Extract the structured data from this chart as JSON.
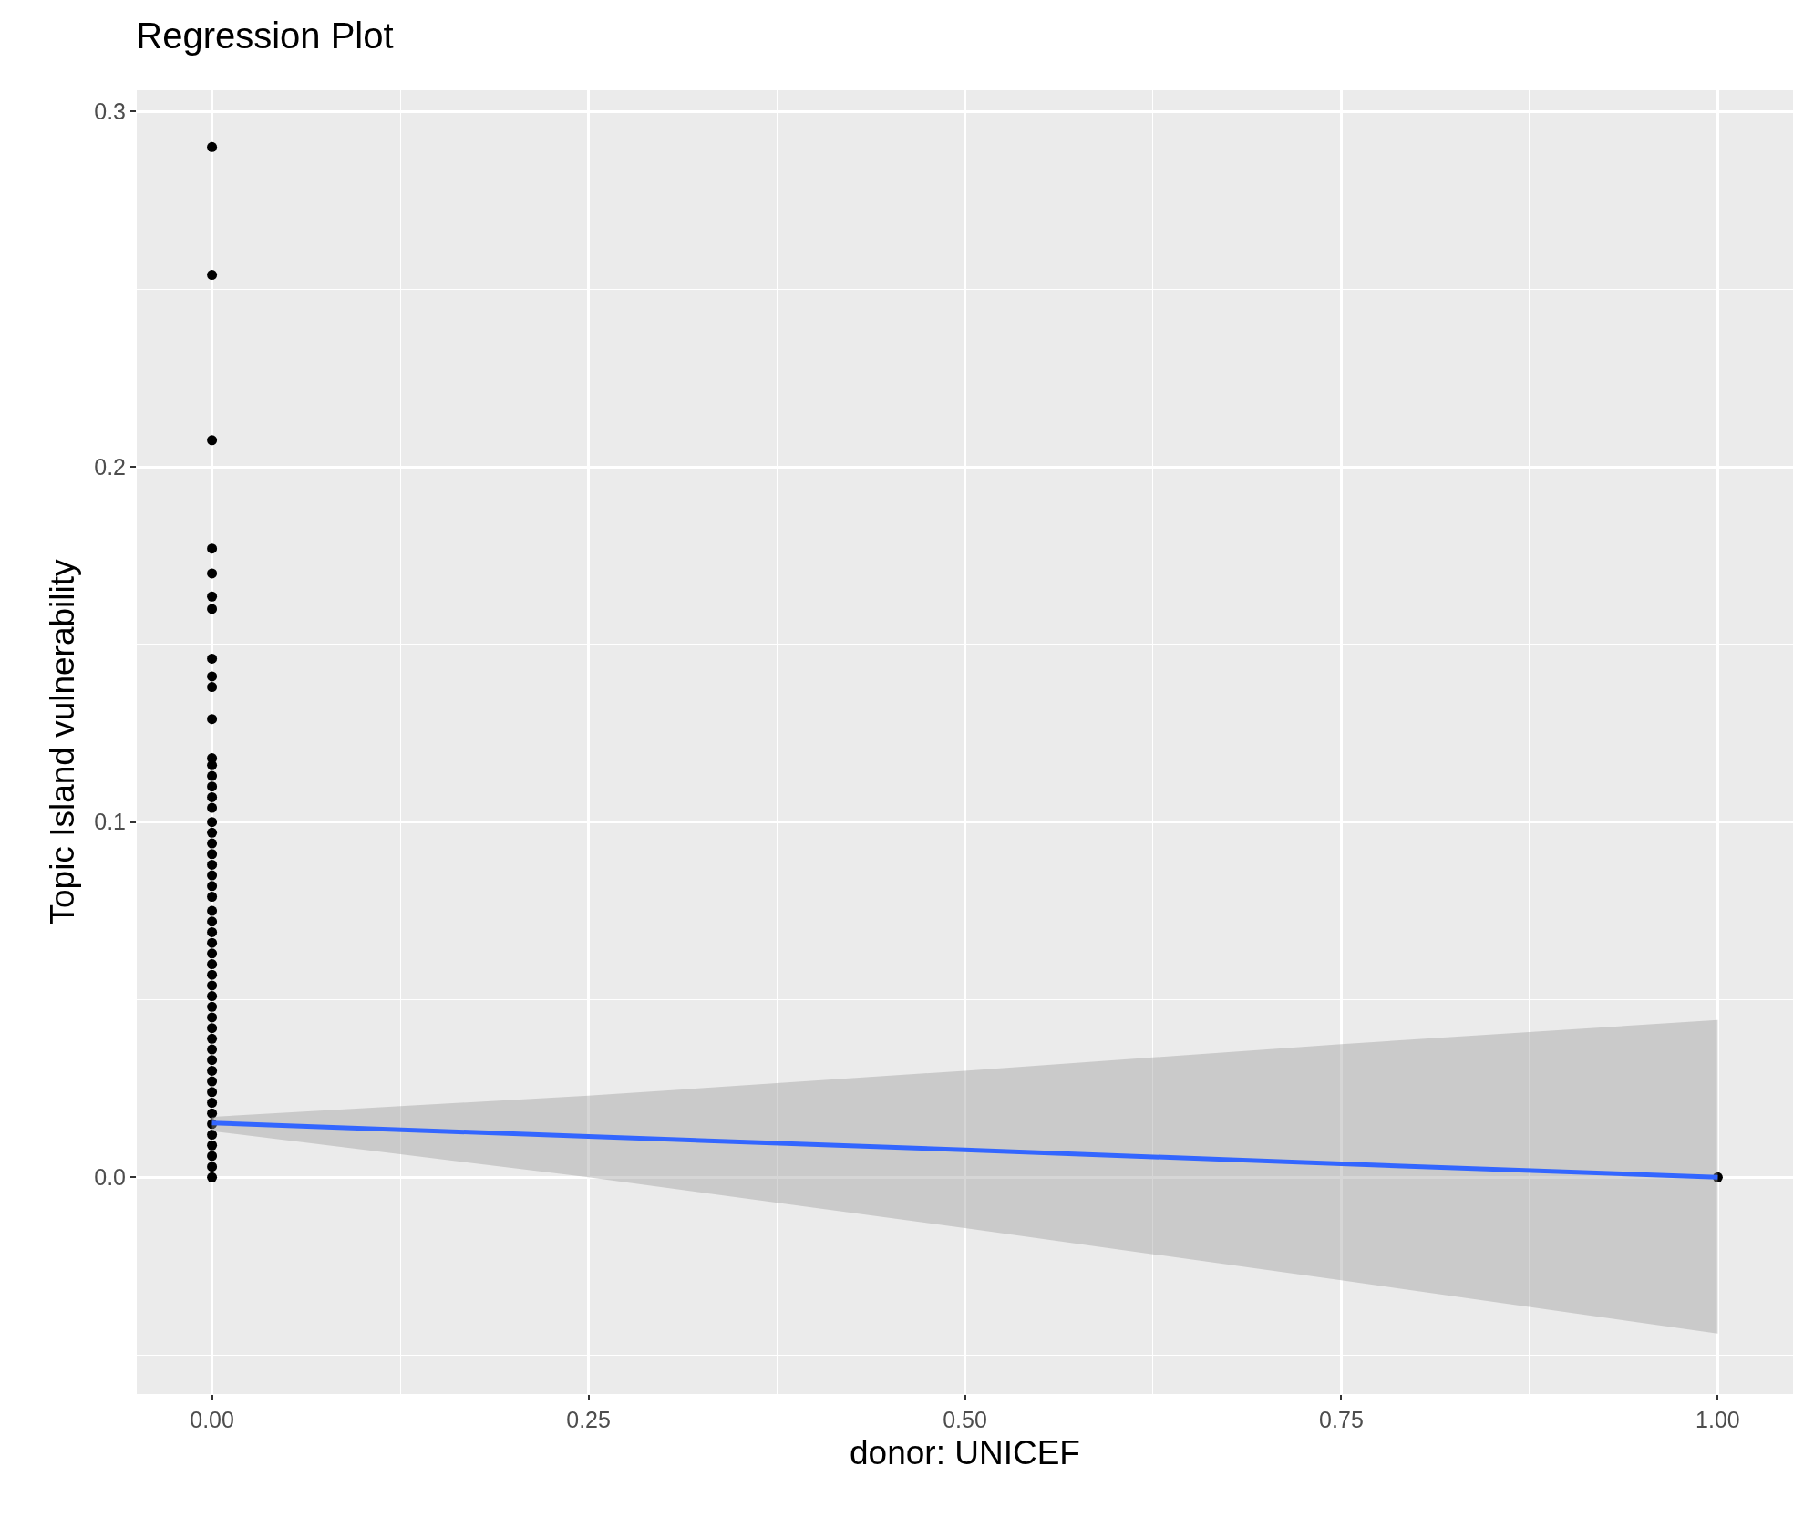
{
  "chart_data": {
    "type": "scatter",
    "title": "Regression Plot",
    "xlabel": "donor: UNICEF",
    "ylabel": "Topic Island vulnerability",
    "xlim": [
      -0.05,
      1.05
    ],
    "xticks": [
      {
        "value": 0,
        "label": "0.00"
      },
      {
        "value": 0.25,
        "label": "0.25"
      },
      {
        "value": 0.5,
        "label": "0.50"
      },
      {
        "value": 0.75,
        "label": "0.75"
      },
      {
        "value": 1,
        "label": "1.00"
      }
    ],
    "ylim": [
      -0.061,
      0.306
    ],
    "yticks": [
      {
        "value": 0,
        "label": "0.0"
      },
      {
        "value": 0.1,
        "label": "0.1"
      },
      {
        "value": 0.2,
        "label": "0.2"
      },
      {
        "value": 0.3,
        "label": "0.3"
      }
    ],
    "grid": true,
    "marker": "circle",
    "series": [
      {
        "color": "#000000",
        "x": [
          0,
          0,
          0,
          0,
          0,
          0,
          0,
          0,
          0,
          0,
          0,
          0,
          0,
          0,
          0,
          0,
          0,
          0,
          0,
          0,
          0,
          0,
          0,
          0,
          0,
          0,
          0,
          0,
          0,
          0,
          0,
          0,
          0,
          0,
          0,
          0,
          0,
          0,
          0,
          0,
          0,
          0,
          0,
          0,
          0,
          0,
          0,
          0,
          0,
          0,
          0,
          1
        ],
        "values": [
          0.29,
          0.254,
          0.2075,
          0.177,
          0.17,
          0.1635,
          0.16,
          0.146,
          0.141,
          0.138,
          0.129,
          0.118,
          0.116,
          0.113,
          0.11,
          0.107,
          0.104,
          0.1,
          0.097,
          0.094,
          0.091,
          0.088,
          0.085,
          0.082,
          0.079,
          0.075,
          0.072,
          0.069,
          0.066,
          0.063,
          0.06,
          0.057,
          0.054,
          0.051,
          0.048,
          0.045,
          0.042,
          0.039,
          0.036,
          0.033,
          0.03,
          0.027,
          0.024,
          0.021,
          0.018,
          0.015,
          0.012,
          0.009,
          0.006,
          0.003,
          0.0,
          0.0
        ]
      },
      {
        "type": "line",
        "marker": "none",
        "color": "#3366ff",
        "x": [
          0,
          0.25,
          0.5,
          0.75,
          1
        ],
        "values": [
          0.0153,
          0.0115,
          0.0077,
          0.0038,
          0.0
        ],
        "lower": [
          0.013,
          0.0,
          -0.0143,
          -0.029,
          -0.044
        ],
        "upper": [
          0.017,
          0.023,
          0.03,
          0.0375,
          0.0443
        ]
      }
    ]
  }
}
